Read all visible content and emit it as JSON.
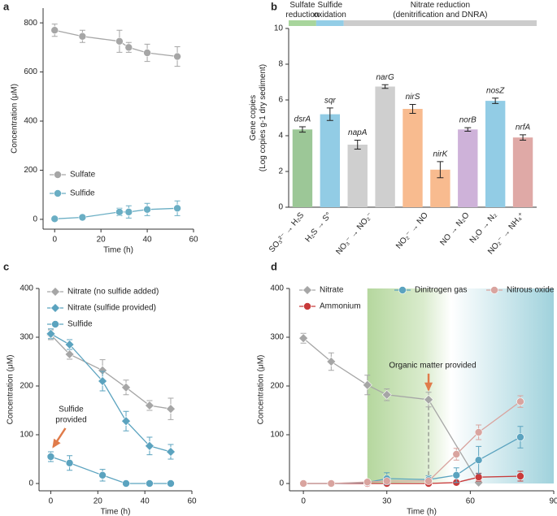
{
  "chart_data": [
    {
      "type": "line",
      "panel": "a",
      "xlabel": "Time (h)",
      "ylabel": "Concentration (μM)",
      "xlim": [
        -5,
        60
      ],
      "ylim": [
        -40,
        860
      ],
      "xticks": [
        0,
        20,
        40,
        60
      ],
      "yticks": [
        0,
        200,
        400,
        600,
        800
      ],
      "legend": "lower left",
      "series": [
        {
          "name": "Sulfate",
          "color": "#a6a6a6",
          "marker": "circle",
          "x": [
            0,
            12,
            28,
            32,
            40,
            53
          ],
          "values": [
            770,
            745,
            725,
            700,
            678,
            663
          ],
          "errors": [
            25,
            25,
            45,
            20,
            35,
            40
          ]
        },
        {
          "name": "Sulfide",
          "color": "#6aaec4",
          "marker": "circle",
          "x": [
            0,
            12,
            28,
            32,
            40,
            53
          ],
          "values": [
            2,
            8,
            30,
            30,
            40,
            45
          ],
          "errors": [
            3,
            4,
            15,
            25,
            25,
            30
          ]
        }
      ]
    },
    {
      "type": "bar",
      "panel": "b",
      "ylabel": "Gene copies\n(Log copies g-1 dry sediment)",
      "ylim": [
        0,
        10
      ],
      "yticks": [
        0,
        2,
        4,
        6,
        8,
        10
      ],
      "processes": [
        {
          "label": "Sulfate\nreduction",
          "color": "#a8d59c",
          "groups": [
            {
              "reaction": "SO₃²⁻ → H₂S",
              "color": "#9cc797",
              "genes": [
                "dsrA"
              ],
              "values": [
                4.35
              ],
              "errors": [
                0.15
              ]
            }
          ]
        },
        {
          "label": "Sulfide\noxidation",
          "color": "#93cde6",
          "groups": [
            {
              "reaction": "H₂S → S°",
              "color": "#92cce5",
              "genes": [
                "sqr"
              ],
              "values": [
                5.2
              ],
              "errors": [
                0.35
              ]
            }
          ]
        },
        {
          "label": "Nitrate reduction\n(denitrification and DNRA)",
          "color": "#cccccc",
          "groups": [
            {
              "reaction": "NO₃⁻ → NO₂⁻",
              "color": "#cfcfcf",
              "genes": [
                "napA",
                "narG"
              ],
              "values": [
                3.5,
                6.75
              ],
              "errors": [
                0.25,
                0.1
              ]
            },
            {
              "reaction": "NO₂⁻ → NO",
              "color": "#f8bb8f",
              "genes": [
                "nirS",
                "nirK"
              ],
              "values": [
                5.5,
                2.1
              ],
              "errors": [
                0.25,
                0.45
              ]
            },
            {
              "reaction": "NO → N₂O",
              "color": "#ceb2d9",
              "genes": [
                "norB"
              ],
              "values": [
                4.35
              ],
              "errors": [
                0.1
              ]
            },
            {
              "reaction": "N₂O → N₂",
              "color": "#92cce5",
              "genes": [
                "nosZ"
              ],
              "values": [
                5.95
              ],
              "errors": [
                0.15
              ]
            },
            {
              "reaction": "NO₂⁻ → NH₄⁺",
              "color": "#dfa9a6",
              "genes": [
                "nrfA"
              ],
              "values": [
                3.9
              ],
              "errors": [
                0.15
              ]
            }
          ]
        }
      ]
    },
    {
      "type": "line",
      "panel": "c",
      "xlabel": "Time (h)",
      "ylabel": "Concentration (μM)",
      "annotation": "Sulfide\nprovided",
      "xlim": [
        -5,
        60
      ],
      "ylim": [
        -15,
        400
      ],
      "xticks": [
        0,
        20,
        40,
        60
      ],
      "yticks": [
        0,
        100,
        200,
        300,
        400
      ],
      "legend": "upper left",
      "series": [
        {
          "name": "Nitrate (no sulfide added)",
          "color": "#a6a6a6",
          "marker": "diamond",
          "x": [
            0,
            8,
            22,
            32,
            42,
            51
          ],
          "values": [
            305,
            265,
            232,
            197,
            160,
            153
          ],
          "errors": [
            10,
            10,
            22,
            15,
            10,
            22
          ]
        },
        {
          "name": "Nitrate (sulfide provided)",
          "color": "#5ba3bf",
          "marker": "diamond",
          "x": [
            0,
            8,
            22,
            32,
            42,
            51
          ],
          "values": [
            307,
            285,
            210,
            128,
            77,
            65
          ],
          "errors": [
            10,
            10,
            20,
            20,
            18,
            15
          ]
        },
        {
          "name": "Sulfide",
          "color": "#5ba3bf",
          "marker": "circle",
          "x": [
            0,
            8,
            22,
            32,
            42,
            51
          ],
          "values": [
            55,
            42,
            17,
            0,
            0,
            0
          ],
          "errors": [
            10,
            15,
            12,
            2,
            2,
            2
          ]
        }
      ]
    },
    {
      "type": "line",
      "panel": "d",
      "xlabel": "Time (h)",
      "ylabel": "Concentration (μM)",
      "annotation": "Organic matter provided",
      "xlim": [
        -5,
        90
      ],
      "ylim": [
        -15,
        400
      ],
      "xticks": [
        0,
        30,
        60,
        90
      ],
      "yticks": [
        0,
        100,
        200,
        300,
        400
      ],
      "legend": "top",
      "series": [
        {
          "name": "Nitrate",
          "color": "#a6a6a6",
          "marker": "diamond",
          "x": [
            0,
            10,
            23,
            30,
            45,
            63
          ],
          "values": [
            298,
            250,
            202,
            182,
            172,
            2
          ],
          "errors": [
            10,
            18,
            20,
            12,
            15,
            3
          ]
        },
        {
          "name": "Ammonium",
          "color": "#c83a3a",
          "marker": "circle",
          "x": [
            0,
            10,
            23,
            30,
            45,
            55,
            63,
            78
          ],
          "values": [
            0,
            0,
            0,
            0,
            0,
            2,
            13,
            15
          ],
          "errors": [
            1,
            1,
            1,
            1,
            1,
            2,
            8,
            10
          ]
        },
        {
          "name": "Dinitrogen gas",
          "color": "#5ba3bf",
          "marker": "circle",
          "x": [
            0,
            10,
            23,
            30,
            45,
            55,
            63,
            78
          ],
          "values": [
            0,
            0,
            2,
            10,
            8,
            17,
            48,
            95
          ],
          "errors": [
            1,
            1,
            3,
            12,
            8,
            15,
            28,
            22
          ]
        },
        {
          "name": "Nitrous oxide",
          "color": "#d9a49f",
          "marker": "circle",
          "x": [
            0,
            10,
            23,
            30,
            45,
            55,
            63,
            78
          ],
          "values": [
            0,
            0,
            3,
            5,
            5,
            60,
            105,
            168
          ],
          "errors": [
            1,
            1,
            3,
            5,
            5,
            12,
            15,
            12
          ]
        }
      ]
    }
  ]
}
